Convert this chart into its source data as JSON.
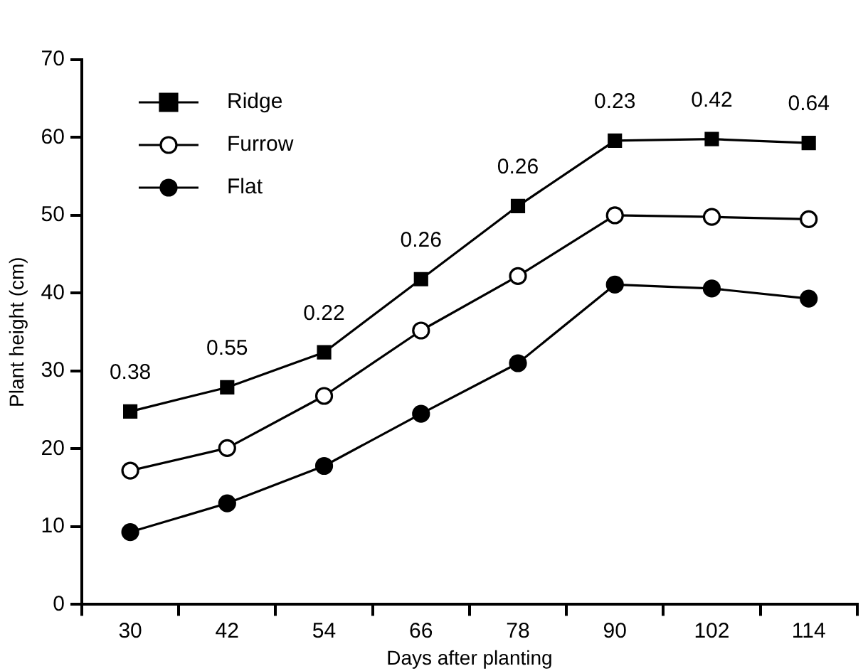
{
  "chart_data": {
    "type": "line",
    "xlabel": "Days after planting",
    "ylabel": "Plant height (cm)",
    "categories": [
      "30",
      "42",
      "54",
      "66",
      "78",
      "90",
      "102",
      "114"
    ],
    "series": [
      {
        "name": "Ridge",
        "color": "#000000",
        "marker": "square",
        "values": [
          24.8,
          27.9,
          32.4,
          41.8,
          51.2,
          59.6,
          59.8,
          59.3
        ]
      },
      {
        "name": "Furrow",
        "color": "#000000",
        "marker": "circle",
        "values": [
          17.2,
          20.1,
          26.8,
          35.2,
          42.2,
          50.0,
          49.8,
          49.5
        ]
      },
      {
        "name": "Flat",
        "color": "#000000",
        "marker": "circle",
        "values": [
          9.3,
          13.0,
          17.8,
          24.5,
          31.0,
          41.1,
          40.6,
          39.3
        ]
      }
    ],
    "ylim": [
      0,
      70
    ],
    "yticks": [
      0,
      10,
      20,
      30,
      40,
      50,
      60,
      70
    ],
    "grid": false,
    "legend": "top left",
    "line_style": "solid",
    "annotations": [
      {
        "text": "0.38",
        "x": "30",
        "y": 24.8
      },
      {
        "text": "0.55",
        "x": "42",
        "y": 27.9
      },
      {
        "text": "0.22",
        "x": "54",
        "y": 32.4
      },
      {
        "text": "0.26",
        "x": "66",
        "y": 41.8
      },
      {
        "text": "0.26",
        "x": "78",
        "y": 51.2
      },
      {
        "text": "0.23",
        "x": "90",
        "y": 59.6
      },
      {
        "text": "0.42",
        "x": "102",
        "y": 59.8
      },
      {
        "text": "0.64",
        "x": "114",
        "y": 59.3
      }
    ]
  }
}
